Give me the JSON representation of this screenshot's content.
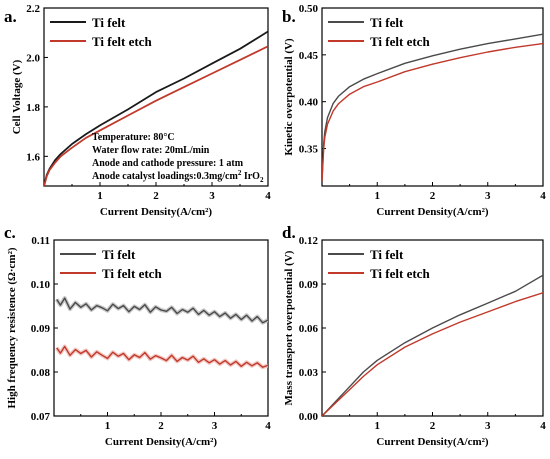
{
  "colors": {
    "black_series": "#1a1a1a",
    "gray_series": "#4a4a4a",
    "red_series": "#c0392b",
    "red_band": "#f2c7c2",
    "gray_band": "#c8c8c8"
  },
  "annotation": {
    "line1": "Temperature: 80°C",
    "line2": "Water flow rate: 20mL/min",
    "line3": "Anode and cathode pressure: 1 atm",
    "line4_prefix": "Anode catalyst loadings:0.3mg/cm",
    "line4_sup": "2",
    "line4_mid": " IrO",
    "line4_sub": "2"
  },
  "chart_data": [
    {
      "type": "line",
      "panel": "a.",
      "xlabel": "Current Density(A/cm²)",
      "ylabel": "Cell Voltage (V)",
      "xlim": [
        0,
        4
      ],
      "ylim": [
        1.48,
        2.2
      ],
      "xticks": [
        "1",
        "2",
        "3",
        "4"
      ],
      "yticks": [
        "1.6",
        "1.8",
        "2.0",
        "2.2"
      ],
      "legend_position": "top-left",
      "series": [
        {
          "name": "Ti felt",
          "x": [
            0,
            0.05,
            0.1,
            0.2,
            0.3,
            0.5,
            0.75,
            1,
            1.5,
            2,
            2.5,
            3,
            3.5,
            4
          ],
          "y": [
            1.48,
            1.525,
            1.55,
            1.585,
            1.61,
            1.65,
            1.69,
            1.725,
            1.79,
            1.86,
            1.915,
            1.975,
            2.035,
            2.105
          ]
        },
        {
          "name": "Ti felt etch",
          "x": [
            0,
            0.05,
            0.1,
            0.2,
            0.3,
            0.5,
            0.75,
            1,
            1.5,
            2,
            2.5,
            3,
            3.5,
            4
          ],
          "y": [
            1.48,
            1.52,
            1.545,
            1.575,
            1.6,
            1.635,
            1.675,
            1.705,
            1.765,
            1.825,
            1.88,
            1.935,
            1.99,
            2.045
          ]
        }
      ]
    },
    {
      "type": "line",
      "panel": "b.",
      "xlabel": "Current Density(A/cm²)",
      "ylabel": "Kinetic overpotential (V)",
      "xlim": [
        0,
        4
      ],
      "ylim": [
        0.31,
        0.5
      ],
      "xticks": [
        "1",
        "2",
        "3",
        "4"
      ],
      "yticks": [
        "0.35",
        "0.40",
        "0.45",
        "0.50"
      ],
      "legend_position": "top-left",
      "series": [
        {
          "name": "Ti felt",
          "x": [
            0,
            0.01,
            0.03,
            0.05,
            0.1,
            0.2,
            0.3,
            0.5,
            0.75,
            1,
            1.5,
            2,
            2.5,
            3,
            3.5,
            4
          ],
          "y": [
            0.315,
            0.33,
            0.355,
            0.368,
            0.383,
            0.398,
            0.406,
            0.416,
            0.424,
            0.43,
            0.441,
            0.449,
            0.456,
            0.462,
            0.467,
            0.472
          ]
        },
        {
          "name": "Ti felt etch",
          "x": [
            0,
            0.01,
            0.03,
            0.05,
            0.1,
            0.2,
            0.3,
            0.5,
            0.75,
            1,
            1.5,
            2,
            2.5,
            3,
            3.5,
            4
          ],
          "y": [
            0.315,
            0.328,
            0.35,
            0.362,
            0.376,
            0.39,
            0.398,
            0.408,
            0.416,
            0.421,
            0.432,
            0.44,
            0.447,
            0.453,
            0.458,
            0.462
          ]
        }
      ]
    },
    {
      "type": "line",
      "panel": "c.",
      "xlabel": "Current Density(A/cm²)",
      "ylabel": "High frequency resistence (Ω·cm²)",
      "xlim": [
        0,
        4
      ],
      "ylim": [
        0.07,
        0.11
      ],
      "xticks": [
        "1",
        "2",
        "3",
        "4"
      ],
      "yticks": [
        "0.07",
        "0.08",
        "0.09",
        "0.10",
        "0.11"
      ],
      "legend_position": "top-left",
      "series": [
        {
          "name": "Ti felt",
          "x": [
            0.05,
            0.12,
            0.2,
            0.3,
            0.4,
            0.5,
            0.6,
            0.7,
            0.8,
            0.9,
            1.0,
            1.1,
            1.2,
            1.3,
            1.4,
            1.5,
            1.6,
            1.7,
            1.8,
            1.9,
            2.0,
            2.1,
            2.2,
            2.3,
            2.4,
            2.5,
            2.6,
            2.7,
            2.8,
            2.9,
            3.0,
            3.1,
            3.2,
            3.3,
            3.4,
            3.5,
            3.6,
            3.7,
            3.8,
            3.9,
            4.0
          ],
          "y": [
            0.0965,
            0.0952,
            0.0968,
            0.0943,
            0.0958,
            0.0947,
            0.0955,
            0.0941,
            0.0951,
            0.0946,
            0.0939,
            0.0954,
            0.0944,
            0.0951,
            0.0937,
            0.0949,
            0.0942,
            0.0953,
            0.0936,
            0.0948,
            0.0941,
            0.0938,
            0.0947,
            0.0933,
            0.0942,
            0.0936,
            0.0945,
            0.0931,
            0.094,
            0.0929,
            0.0937,
            0.0926,
            0.0934,
            0.0922,
            0.0931,
            0.0919,
            0.0929,
            0.0916,
            0.0926,
            0.0912,
            0.0918
          ]
        },
        {
          "name": "Ti felt etch",
          "x": [
            0.05,
            0.12,
            0.2,
            0.3,
            0.4,
            0.5,
            0.6,
            0.7,
            0.8,
            0.9,
            1.0,
            1.1,
            1.2,
            1.3,
            1.4,
            1.5,
            1.6,
            1.7,
            1.8,
            1.9,
            2.0,
            2.1,
            2.2,
            2.3,
            2.4,
            2.5,
            2.6,
            2.7,
            2.8,
            2.9,
            3.0,
            3.1,
            3.2,
            3.3,
            3.4,
            3.5,
            3.6,
            3.7,
            3.8,
            3.9,
            4.0
          ],
          "y": [
            0.0855,
            0.0843,
            0.0858,
            0.0838,
            0.0851,
            0.0842,
            0.0849,
            0.0834,
            0.0846,
            0.0838,
            0.0831,
            0.0845,
            0.0836,
            0.0842,
            0.0828,
            0.0839,
            0.0833,
            0.0844,
            0.0829,
            0.0837,
            0.0832,
            0.0826,
            0.0838,
            0.0824,
            0.0833,
            0.0827,
            0.0836,
            0.0822,
            0.083,
            0.0821,
            0.0828,
            0.0818,
            0.0826,
            0.0816,
            0.0824,
            0.0813,
            0.0822,
            0.0814,
            0.0821,
            0.0811,
            0.0815
          ]
        }
      ]
    },
    {
      "type": "line",
      "panel": "d.",
      "xlabel": "Current Density(A/cm²)",
      "ylabel": "Mass transport overpotential (V)",
      "xlim": [
        0,
        4
      ],
      "ylim": [
        0,
        0.12
      ],
      "xticks": [
        "1",
        "2",
        "3",
        "4"
      ],
      "yticks": [
        "0.00",
        "0.03",
        "0.06",
        "0.09",
        "0.12"
      ],
      "legend_position": "top-left",
      "series": [
        {
          "name": "Ti felt",
          "x": [
            0,
            0.25,
            0.5,
            0.75,
            1,
            1.5,
            2,
            2.5,
            3,
            3.5,
            4
          ],
          "y": [
            0,
            0.01,
            0.02,
            0.03,
            0.038,
            0.05,
            0.06,
            0.069,
            0.077,
            0.085,
            0.096
          ]
        },
        {
          "name": "Ti felt etch",
          "x": [
            0,
            0.25,
            0.5,
            0.75,
            1,
            1.5,
            2,
            2.5,
            3,
            3.5,
            4
          ],
          "y": [
            0,
            0.009,
            0.018,
            0.027,
            0.035,
            0.047,
            0.056,
            0.064,
            0.071,
            0.078,
            0.084
          ]
        }
      ]
    }
  ]
}
